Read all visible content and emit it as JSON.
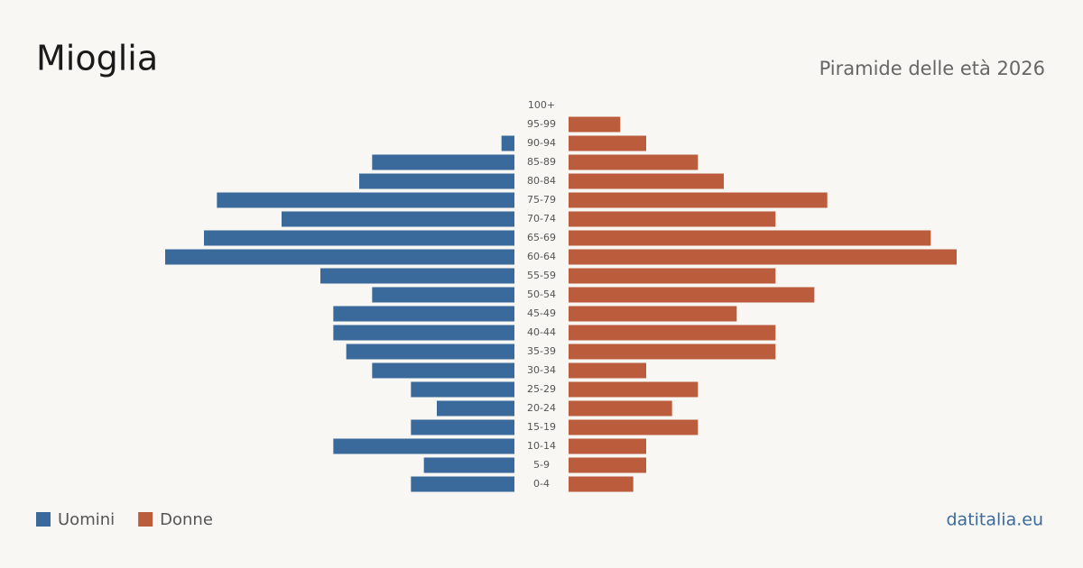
{
  "chart_data": {
    "type": "pyramid",
    "title": "Mioglia",
    "subtitle": "Piramide delle età 2026",
    "source": "datitalia.eu",
    "categories": [
      "100+",
      "95-99",
      "90-94",
      "85-89",
      "80-84",
      "75-79",
      "70-74",
      "65-69",
      "60-64",
      "55-59",
      "50-54",
      "45-49",
      "40-44",
      "35-39",
      "30-34",
      "25-29",
      "20-24",
      "15-19",
      "10-14",
      "5-9",
      "0-4"
    ],
    "series": [
      {
        "name": "Uomini",
        "color": "#3a6a9b",
        "values": [
          0,
          0,
          1,
          11,
          12,
          23,
          18,
          24,
          27,
          15,
          11,
          14,
          14,
          13,
          11,
          8,
          6,
          8,
          14,
          7,
          8
        ]
      },
      {
        "name": "Donne",
        "color": "#bb5d3c",
        "values": [
          0,
          4,
          6,
          10,
          12,
          20,
          16,
          28,
          30,
          16,
          19,
          13,
          16,
          16,
          6,
          10,
          8,
          10,
          6,
          6,
          5
        ]
      }
    ]
  }
}
